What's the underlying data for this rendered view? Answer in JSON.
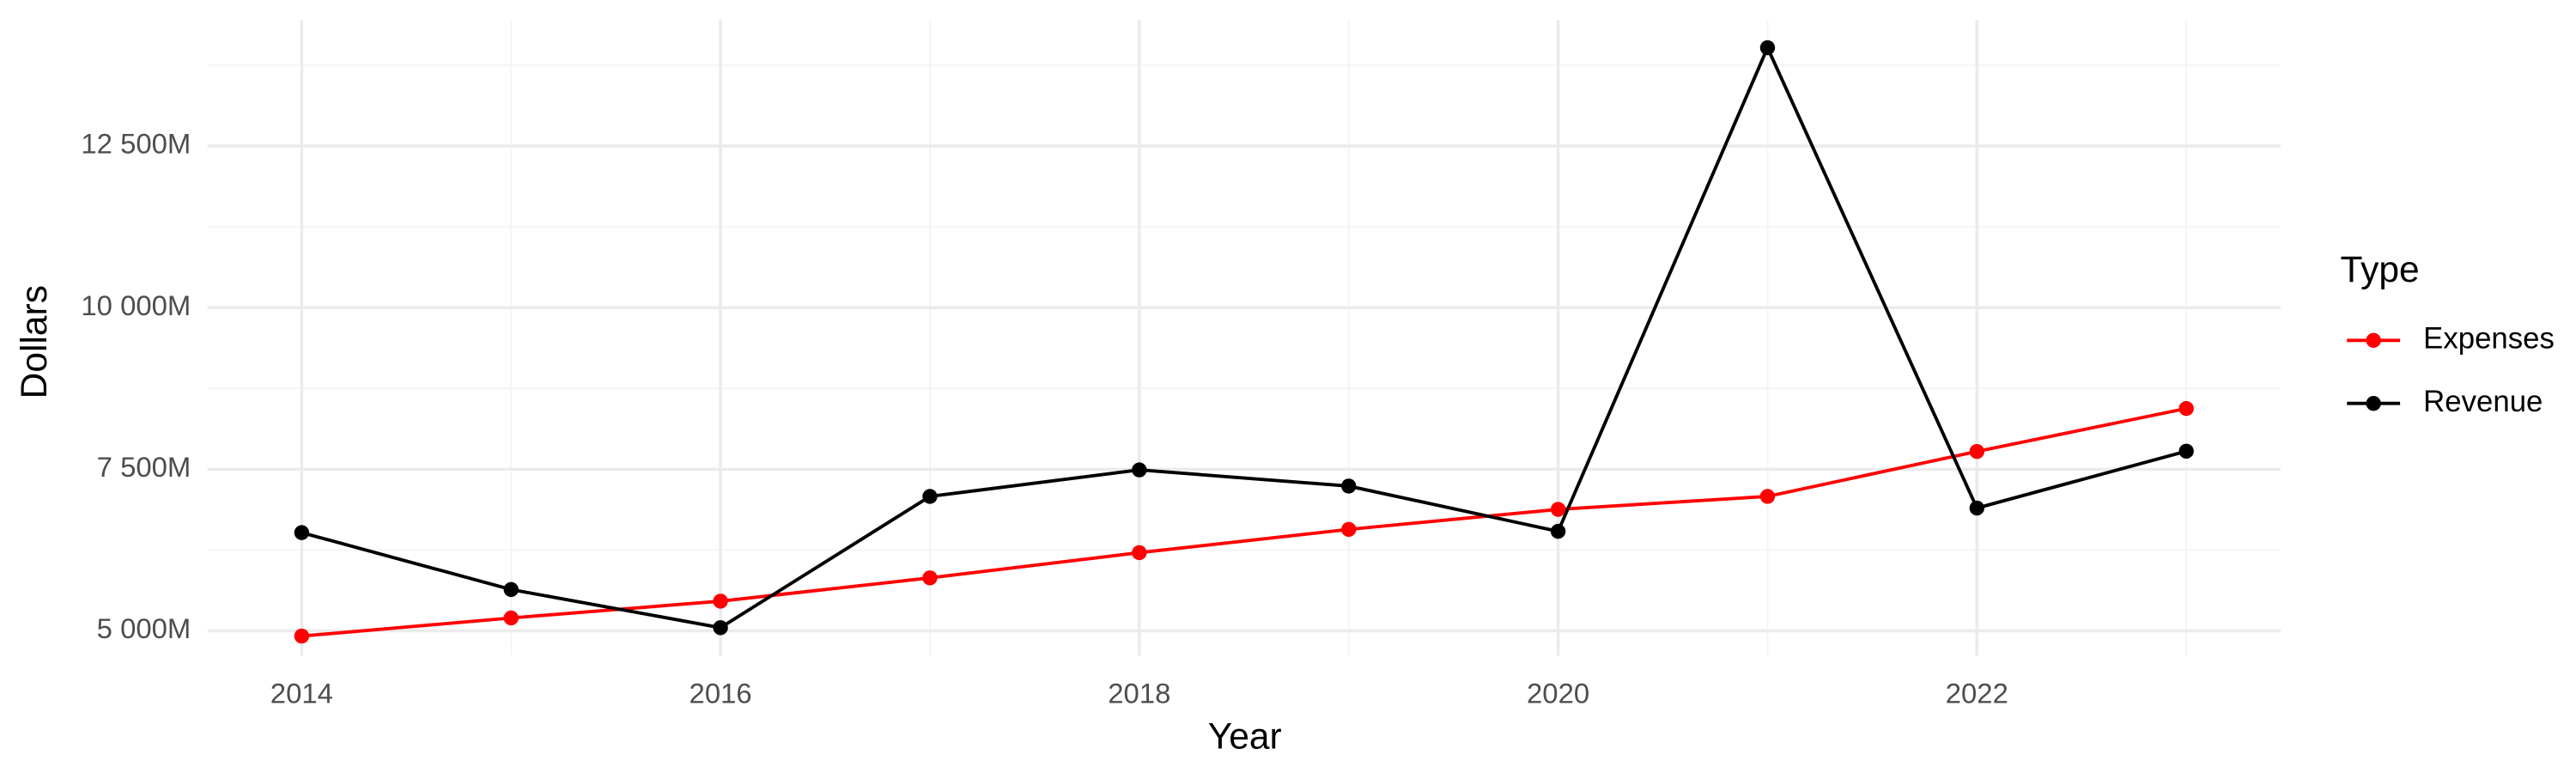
{
  "chart_data": {
    "type": "line",
    "x_label": "Year",
    "y_label": "Dollars",
    "x": [
      2014,
      2015,
      2016,
      2017,
      2018,
      2019,
      2020,
      2021,
      2022,
      2023
    ],
    "series": [
      {
        "name": "Expenses",
        "color": "#ff0000",
        "values": [
          4920,
          5200,
          5460,
          5820,
          6210,
          6570,
          6880,
          7080,
          7775,
          8440
        ]
      },
      {
        "name": "Revenue",
        "color": "#000000",
        "values": [
          6520,
          5640,
          5050,
          7080,
          7490,
          7240,
          6540,
          14020,
          6900,
          7780
        ]
      }
    ],
    "xlim": [
      2013.55,
      2023.45
    ],
    "xticks": [
      2014,
      2016,
      2018,
      2020,
      2022
    ],
    "ylim": [
      4615,
      14450
    ],
    "yticks": [
      {
        "value": 5000,
        "label": "5 000M"
      },
      {
        "value": 7500,
        "label": "7 500M"
      },
      {
        "value": 10000,
        "label": "10 000M"
      },
      {
        "value": 12500,
        "label": "12 500M"
      }
    ],
    "grid": true,
    "legend_title": "Type",
    "legend_position": "right"
  }
}
